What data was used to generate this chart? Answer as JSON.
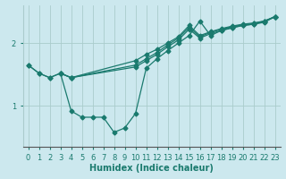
{
  "background_color": "#cce8ee",
  "grid_color": "#aacccc",
  "line_color": "#1a7a6e",
  "marker": "D",
  "markersize": 2.5,
  "linewidth": 0.9,
  "xlabel": "Humidex (Indice chaleur)",
  "xlabel_fontsize": 7,
  "tick_fontsize": 6,
  "ylabel_ticks": [
    1,
    2
  ],
  "ylim": [
    0.35,
    2.6
  ],
  "xlim": [
    -0.5,
    23.5
  ],
  "series": [
    {
      "x": [
        0,
        1,
        2,
        3,
        4,
        10,
        11,
        12,
        13,
        14,
        15,
        16,
        17,
        18,
        19,
        20,
        21,
        22,
        23
      ],
      "y": [
        1.65,
        1.52,
        1.45,
        1.52,
        1.45,
        1.72,
        1.82,
        1.9,
        2.0,
        2.1,
        2.28,
        2.12,
        2.18,
        2.23,
        2.27,
        2.3,
        2.32,
        2.35,
        2.42
      ]
    },
    {
      "x": [
        3,
        4,
        10,
        11,
        12,
        13,
        14,
        15,
        16,
        17,
        18,
        19,
        20,
        21,
        22,
        23
      ],
      "y": [
        1.52,
        1.45,
        1.65,
        1.75,
        1.85,
        1.97,
        2.08,
        2.25,
        2.1,
        2.17,
        2.22,
        2.26,
        2.29,
        2.31,
        2.35,
        2.42
      ]
    },
    {
      "x": [
        3,
        4,
        10,
        11,
        12,
        13,
        14,
        15,
        16,
        17,
        18,
        19,
        20,
        21,
        22,
        23
      ],
      "y": [
        1.52,
        1.45,
        1.62,
        1.72,
        1.82,
        1.94,
        2.05,
        2.22,
        2.08,
        2.15,
        2.2,
        2.24,
        2.28,
        2.3,
        2.34,
        2.42
      ]
    },
    {
      "x": [
        0,
        1,
        2,
        3,
        4,
        5,
        6,
        7,
        8,
        9,
        10,
        11,
        12,
        13,
        14,
        15,
        16,
        17,
        18,
        19,
        20,
        21,
        22,
        23
      ],
      "y": [
        1.65,
        1.52,
        1.45,
        1.52,
        0.92,
        0.82,
        0.82,
        0.82,
        0.58,
        0.65,
        0.88,
        1.6,
        1.75,
        1.88,
        2.0,
        2.12,
        2.35,
        2.12,
        2.2,
        2.25,
        2.28,
        2.3,
        2.33,
        2.42
      ]
    }
  ]
}
